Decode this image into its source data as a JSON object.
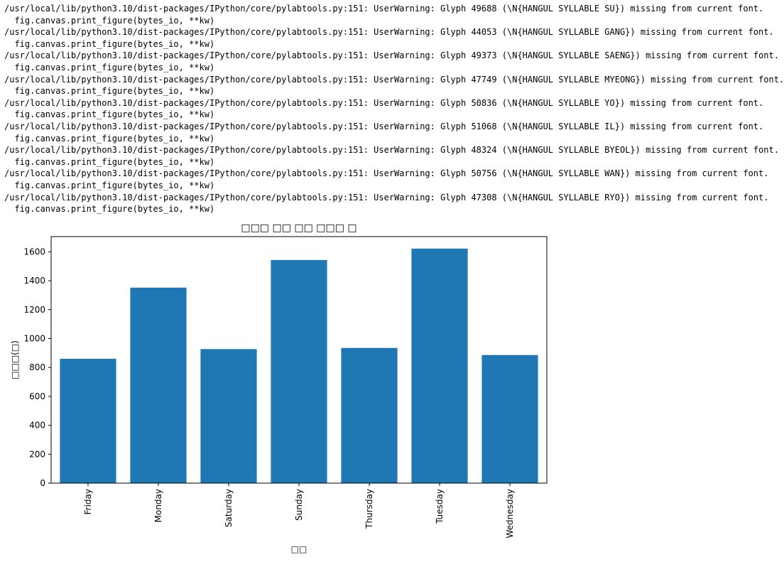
{
  "output": {
    "stderr_lines": [
      "/usr/local/lib/python3.10/dist-packages/IPython/core/pylabtools.py:151: UserWarning: Glyph 49688 (\\N{HANGUL SYLLABLE SU}) missing from current font.",
      "  fig.canvas.print_figure(bytes_io, **kw)",
      "/usr/local/lib/python3.10/dist-packages/IPython/core/pylabtools.py:151: UserWarning: Glyph 44053 (\\N{HANGUL SYLLABLE GANG}) missing from current font.",
      "  fig.canvas.print_figure(bytes_io, **kw)",
      "/usr/local/lib/python3.10/dist-packages/IPython/core/pylabtools.py:151: UserWarning: Glyph 49373 (\\N{HANGUL SYLLABLE SAENG}) missing from current font.",
      "  fig.canvas.print_figure(bytes_io, **kw)",
      "/usr/local/lib/python3.10/dist-packages/IPython/core/pylabtools.py:151: UserWarning: Glyph 47749 (\\N{HANGUL SYLLABLE MYEONG}) missing from current font.",
      "  fig.canvas.print_figure(bytes_io, **kw)",
      "/usr/local/lib/python3.10/dist-packages/IPython/core/pylabtools.py:151: UserWarning: Glyph 50836 (\\N{HANGUL SYLLABLE YO}) missing from current font.",
      "  fig.canvas.print_figure(bytes_io, **kw)",
      "/usr/local/lib/python3.10/dist-packages/IPython/core/pylabtools.py:151: UserWarning: Glyph 51068 (\\N{HANGUL SYLLABLE IL}) missing from current font.",
      "  fig.canvas.print_figure(bytes_io, **kw)",
      "/usr/local/lib/python3.10/dist-packages/IPython/core/pylabtools.py:151: UserWarning: Glyph 48324 (\\N{HANGUL SYLLABLE BYEOL}) missing from current font.",
      "  fig.canvas.print_figure(bytes_io, **kw)",
      "/usr/local/lib/python3.10/dist-packages/IPython/core/pylabtools.py:151: UserWarning: Glyph 50756 (\\N{HANGUL SYLLABLE WAN}) missing from current font.",
      "  fig.canvas.print_figure(bytes_io, **kw)",
      "/usr/local/lib/python3.10/dist-packages/IPython/core/pylabtools.py:151: UserWarning: Glyph 47308 (\\N{HANGUL SYLLABLE RYO}) missing from current font.",
      "  fig.canvas.print_figure(bytes_io, **kw)"
    ]
  },
  "chart_data": {
    "type": "bar",
    "title": "□□□ □□ □□ □□□ □",
    "xlabel": "□□",
    "ylabel": "□□□(□)",
    "categories": [
      "Friday",
      "Monday",
      "Saturday",
      "Sunday",
      "Thursday",
      "Tuesday",
      "Wednesday"
    ],
    "values": [
      860,
      1352,
      927,
      1543,
      935,
      1622,
      886
    ],
    "ylim": [
      0,
      1705
    ],
    "yticks": [
      0,
      200,
      400,
      600,
      800,
      1000,
      1200,
      1400,
      1600
    ],
    "bar_color": "#1f77b4",
    "grid": false,
    "legend": false
  }
}
